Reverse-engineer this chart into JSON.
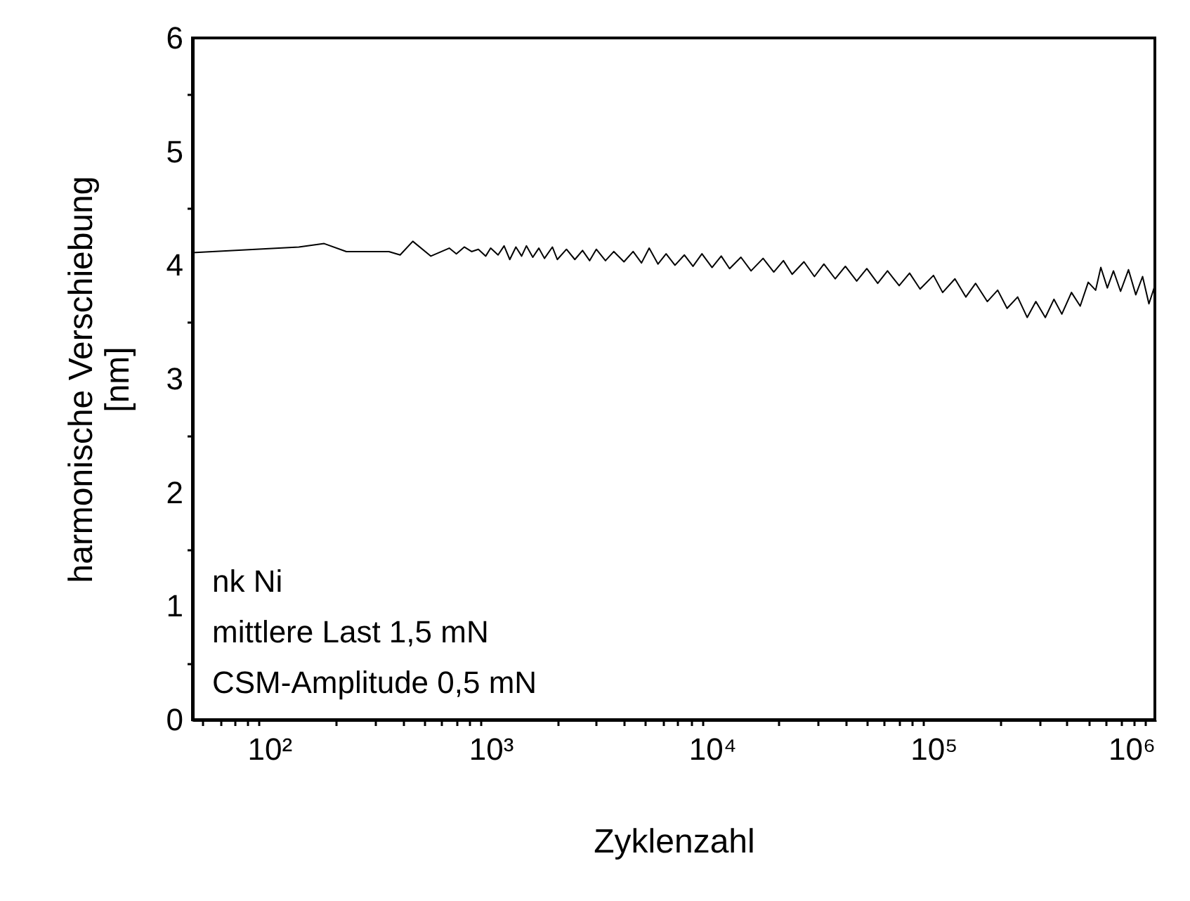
{
  "chart_data": {
    "type": "line",
    "xlabel": "Zyklenzahl",
    "ylabel": "harmonische Verschiebung\n[nm]",
    "log": "x",
    "grid": false,
    "marker": "none",
    "line_style": "solid",
    "xlim": [
      45,
      1000000
    ],
    "ylim": [
      0,
      6
    ],
    "xticks": [
      {
        "value": 50,
        "label": null
      },
      {
        "value": 60,
        "label": null
      },
      {
        "value": 70,
        "label": null
      },
      {
        "value": 80,
        "label": null
      },
      {
        "value": 90,
        "label": null
      },
      {
        "value": 100,
        "label": "10²"
      },
      {
        "value": 200,
        "label": null
      },
      {
        "value": 300,
        "label": null
      },
      {
        "value": 400,
        "label": null
      },
      {
        "value": 500,
        "label": null
      },
      {
        "value": 600,
        "label": null
      },
      {
        "value": 700,
        "label": null
      },
      {
        "value": 800,
        "label": null
      },
      {
        "value": 900,
        "label": null
      },
      {
        "value": 1000,
        "label": "10³"
      },
      {
        "value": 2000,
        "label": null
      },
      {
        "value": 3000,
        "label": null
      },
      {
        "value": 4000,
        "label": null
      },
      {
        "value": 5000,
        "label": null
      },
      {
        "value": 6000,
        "label": null
      },
      {
        "value": 7000,
        "label": null
      },
      {
        "value": 8000,
        "label": null
      },
      {
        "value": 9000,
        "label": null
      },
      {
        "value": 10000,
        "label": "10⁴"
      },
      {
        "value": 20000,
        "label": null
      },
      {
        "value": 30000,
        "label": null
      },
      {
        "value": 40000,
        "label": null
      },
      {
        "value": 50000,
        "label": null
      },
      {
        "value": 60000,
        "label": null
      },
      {
        "value": 70000,
        "label": null
      },
      {
        "value": 80000,
        "label": null
      },
      {
        "value": 90000,
        "label": null
      },
      {
        "value": 100000,
        "label": "10⁵"
      },
      {
        "value": 200000,
        "label": null
      },
      {
        "value": 300000,
        "label": null
      },
      {
        "value": 400000,
        "label": null
      },
      {
        "value": 500000,
        "label": null
      },
      {
        "value": 600000,
        "label": null
      },
      {
        "value": 700000,
        "label": null
      },
      {
        "value": 800000,
        "label": null
      },
      {
        "value": 900000,
        "label": null
      },
      {
        "value": 1000000,
        "label": "10⁶"
      }
    ],
    "yticks": [
      0,
      {
        "value": 0.5,
        "label": null
      },
      1,
      {
        "value": 1.5,
        "label": null
      },
      2,
      {
        "value": 2.5,
        "label": null
      },
      3,
      {
        "value": 3.5,
        "label": null
      },
      4,
      {
        "value": 4.5,
        "label": null
      },
      5,
      {
        "value": 5.5,
        "label": null
      },
      6
    ],
    "annotations": [
      "nk Ni",
      "mittlere Last 1,5 mN",
      "CSM-Amplitude 0,5 mN"
    ],
    "series": [
      {
        "color": "#000000",
        "x": [
          45,
          136,
          177,
          223,
          347,
          390,
          445,
          537,
          600,
          650,
          700,
          760,
          820,
          880,
          950,
          1000,
          1080,
          1150,
          1220,
          1300,
          1380,
          1450,
          1550,
          1650,
          1750,
          1900,
          2000,
          2200,
          2400,
          2600,
          2800,
          3000,
          3300,
          3600,
          4000,
          4400,
          4800,
          5200,
          5700,
          6200,
          6800,
          7500,
          8200,
          9000,
          10000,
          11000,
          12000,
          13500,
          15000,
          17000,
          19000,
          21000,
          23000,
          26000,
          29000,
          32000,
          36000,
          40000,
          45000,
          50000,
          56000,
          62000,
          70000,
          78000,
          87000,
          100000,
          110000,
          125000,
          140000,
          155000,
          175000,
          195000,
          215000,
          240000,
          265000,
          290000,
          320000,
          350000,
          380000,
          420000,
          460000,
          500000,
          540000,
          570000,
          610000,
          650000,
          700000,
          760000,
          820000,
          880000,
          940000,
          1000000
        ],
        "values": [
          4.11,
          4.16,
          4.19,
          4.12,
          4.12,
          4.09,
          4.21,
          4.08,
          4.12,
          4.15,
          4.1,
          4.16,
          4.12,
          4.14,
          4.08,
          4.15,
          4.09,
          4.17,
          4.05,
          4.16,
          4.08,
          4.17,
          4.07,
          4.15,
          4.06,
          4.16,
          4.05,
          4.14,
          4.05,
          4.13,
          4.04,
          4.14,
          4.04,
          4.12,
          4.03,
          4.12,
          4.02,
          4.15,
          4.01,
          4.1,
          4.0,
          4.09,
          3.99,
          4.1,
          3.98,
          4.08,
          3.97,
          4.07,
          3.95,
          4.06,
          3.94,
          4.04,
          3.92,
          4.03,
          3.9,
          4.01,
          3.88,
          3.99,
          3.86,
          3.97,
          3.84,
          3.95,
          3.82,
          3.93,
          3.79,
          3.91,
          3.76,
          3.88,
          3.72,
          3.84,
          3.68,
          3.78,
          3.62,
          3.72,
          3.54,
          3.68,
          3.54,
          3.7,
          3.57,
          3.76,
          3.64,
          3.85,
          3.78,
          3.98,
          3.8,
          3.95,
          3.77,
          3.96,
          3.74,
          3.9,
          3.66,
          3.82
        ]
      }
    ]
  }
}
